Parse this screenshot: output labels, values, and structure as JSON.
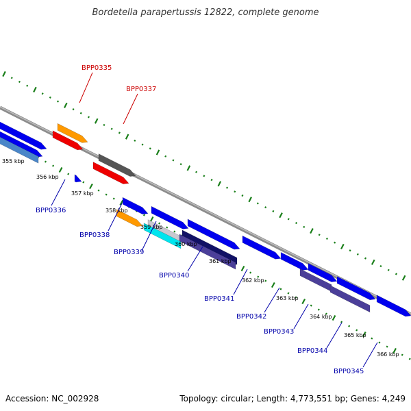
{
  "header": {
    "title": "Bordetella parapertussis 12822, complete genome"
  },
  "footer": {
    "accession": "Accession: NC_002928",
    "summary": "Topology: circular; Length: 4,773,551 bp; Genes: 4,249"
  },
  "colors": {
    "backbone": "#8c8c8c",
    "tick_dots": "#1a7f1a",
    "label_red": "#cc0000",
    "label_blue": "#0000aa",
    "gene_blue": "#0000ee",
    "gene_orange": "#ff9900",
    "gene_red": "#ee0000",
    "gene_gray": "#555555",
    "gene_cyan": "#00e5ee",
    "gene_lightgray": "#c8c8d0",
    "gene_purple": "#4b3f99",
    "gene_steelblue": "#4a86c8"
  },
  "ticks": [
    "355 kbp",
    "356 kbp",
    "357 kbp",
    "358 kbp",
    "359 kbp",
    "360 kbp",
    "361 kbp",
    "362 kbp",
    "363 kbp",
    "364 kbp",
    "365 kbp",
    "366 kbp"
  ],
  "gene_labels": [
    {
      "name": "BPP0335",
      "color": "red"
    },
    {
      "name": "BPP0337",
      "color": "red"
    },
    {
      "name": "BPP0336",
      "color": "blue"
    },
    {
      "name": "BPP0338",
      "color": "blue"
    },
    {
      "name": "BPP0339",
      "color": "blue"
    },
    {
      "name": "BPP0340",
      "color": "blue"
    },
    {
      "name": "BPP0341",
      "color": "blue"
    },
    {
      "name": "BPP0342",
      "color": "blue"
    },
    {
      "name": "BPP0343",
      "color": "blue"
    },
    {
      "name": "BPP0344",
      "color": "blue"
    },
    {
      "name": "BPP0345",
      "color": "blue"
    }
  ]
}
